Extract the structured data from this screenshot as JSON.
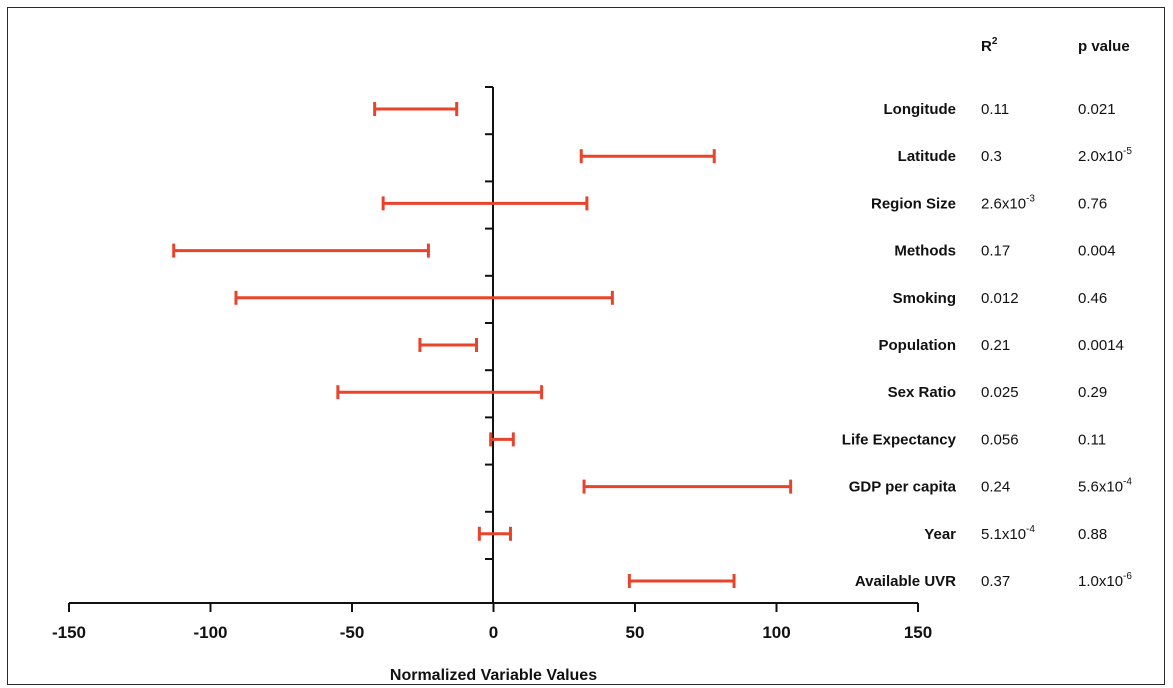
{
  "chart_data": {
    "type": "interval",
    "xlabel": "Normalized Variable Values",
    "xlim": [
      -150,
      150
    ],
    "xticks": [
      -150,
      -100,
      -50,
      0,
      50,
      100,
      150
    ],
    "interval_color": "#e8432b",
    "axis_color": "#111111",
    "columns": {
      "r2": {
        "base": "R",
        "sup": "2"
      },
      "p": {
        "base": "p value",
        "sup": ""
      }
    },
    "rows": [
      {
        "label": "Longitude",
        "low": -42,
        "high": -13,
        "r2": {
          "base": "0.11",
          "sup": ""
        },
        "p": {
          "base": "0.021",
          "sup": ""
        }
      },
      {
        "label": "Latitude",
        "low": 31,
        "high": 78,
        "r2": {
          "base": "0.3",
          "sup": ""
        },
        "p": {
          "base": "2.0x10",
          "sup": "-5"
        }
      },
      {
        "label": "Region Size",
        "low": -39,
        "high": 33,
        "r2": {
          "base": "2.6x10",
          "sup": "-3"
        },
        "p": {
          "base": "0.76",
          "sup": ""
        }
      },
      {
        "label": "Methods",
        "low": -113,
        "high": -23,
        "r2": {
          "base": "0.17",
          "sup": ""
        },
        "p": {
          "base": "0.004",
          "sup": ""
        }
      },
      {
        "label": "Smoking",
        "low": -91,
        "high": 42,
        "r2": {
          "base": "0.012",
          "sup": ""
        },
        "p": {
          "base": "0.46",
          "sup": ""
        }
      },
      {
        "label": "Population",
        "low": -26,
        "high": -6,
        "r2": {
          "base": "0.21",
          "sup": ""
        },
        "p": {
          "base": "0.0014",
          "sup": ""
        }
      },
      {
        "label": "Sex Ratio",
        "low": -55,
        "high": 17,
        "r2": {
          "base": "0.025",
          "sup": ""
        },
        "p": {
          "base": "0.29",
          "sup": ""
        }
      },
      {
        "label": "Life Expectancy",
        "low": -1,
        "high": 7,
        "r2": {
          "base": "0.056",
          "sup": ""
        },
        "p": {
          "base": "0.11",
          "sup": ""
        }
      },
      {
        "label": "GDP per capita",
        "low": 32,
        "high": 105,
        "r2": {
          "base": "0.24",
          "sup": ""
        },
        "p": {
          "base": "5.6x10",
          "sup": "-4"
        }
      },
      {
        "label": "Year",
        "low": -5,
        "high": 6,
        "r2": {
          "base": "5.1x10",
          "sup": "-4"
        },
        "p": {
          "base": "0.88",
          "sup": ""
        }
      },
      {
        "label": "Available UVR",
        "low": 48,
        "high": 85,
        "r2": {
          "base": "0.37",
          "sup": ""
        },
        "p": {
          "base": "1.0x10",
          "sup": "-6"
        }
      }
    ]
  }
}
